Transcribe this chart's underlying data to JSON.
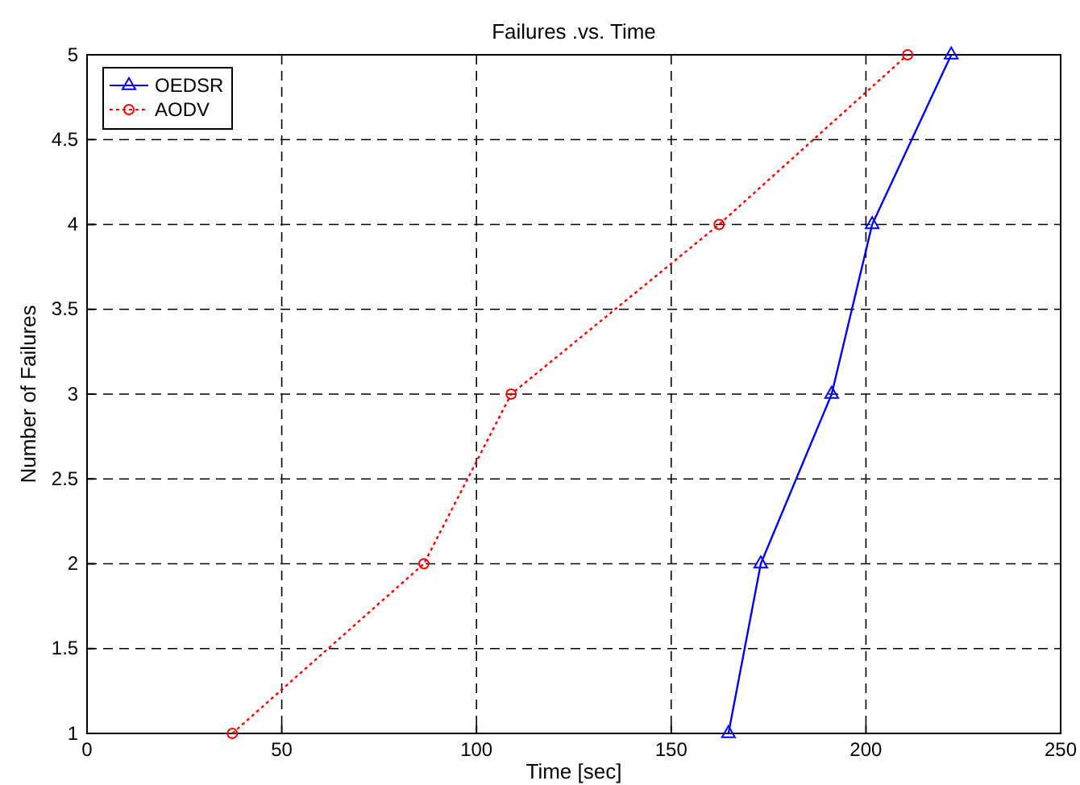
{
  "chart_data": {
    "type": "line",
    "title": "Failures .vs. Time",
    "xlabel": "Time [sec]",
    "ylabel": "Number of Failures",
    "xlim": [
      0,
      250
    ],
    "xticks": [
      0,
      50,
      100,
      150,
      200,
      250
    ],
    "ylim": [
      1,
      5
    ],
    "yticks": [
      1,
      1.5,
      2,
      2.5,
      3,
      3.5,
      4,
      4.5,
      5
    ],
    "grid": true,
    "legend": "top left",
    "series": [
      {
        "name": "OEDSR",
        "color": "#0000ff",
        "marker": "triangle",
        "line_style": "solid",
        "x": [
          164.7,
          173,
          191.2,
          201.6,
          221.9
        ],
        "values": [
          1,
          2,
          3,
          4,
          5
        ]
      },
      {
        "name": "AODV",
        "color": "#ff0000",
        "marker": "circle",
        "line_style": "dotted",
        "x": [
          37.3,
          86.5,
          108.9,
          162.3,
          210.7
        ],
        "values": [
          1,
          2,
          3,
          4,
          5
        ]
      }
    ]
  }
}
